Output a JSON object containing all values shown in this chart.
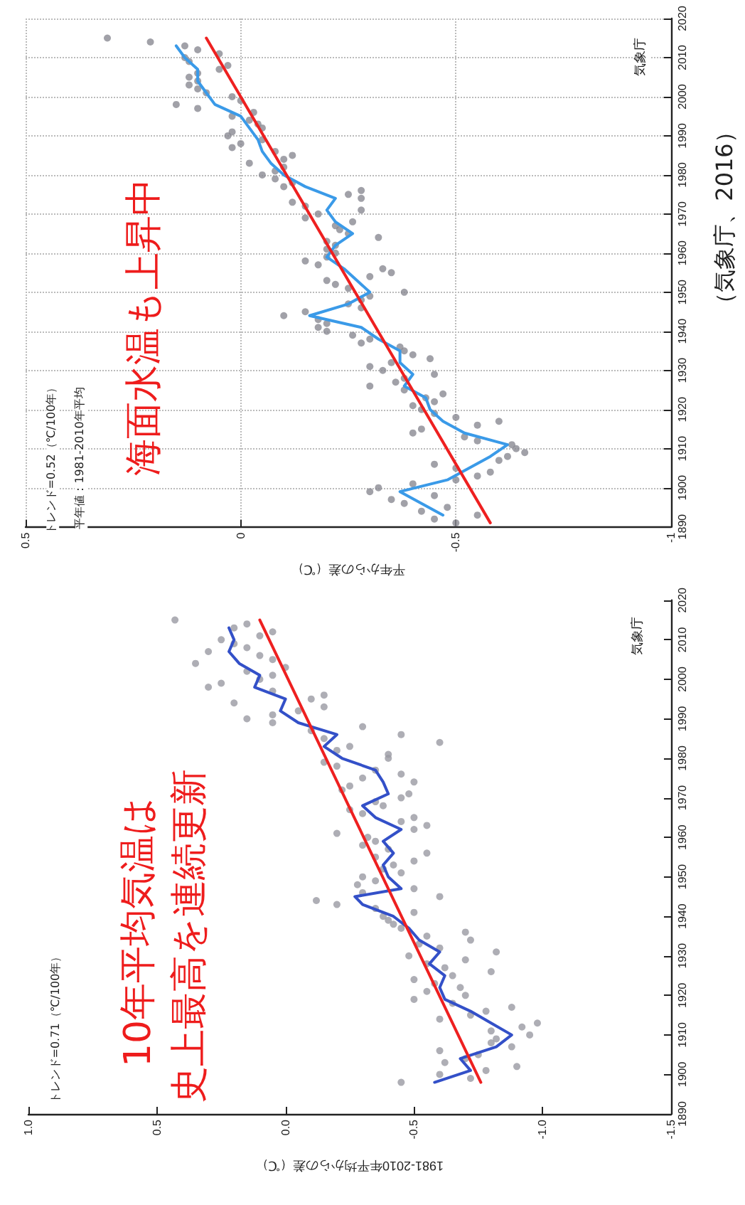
{
  "chart_data": [
    {
      "type": "scatter",
      "orientation": "horizontal",
      "xlabel": "1981-2010年平均からの差（℃）",
      "annotations": [
        "トレンド=0.71（℃/100年）",
        "10年平均気温は",
        "史上最高を連続更新",
        "気象庁"
      ],
      "ylim": [
        1890,
        2020
      ],
      "yticks": [
        1890,
        1900,
        1910,
        1920,
        1930,
        1940,
        1950,
        1960,
        1970,
        1980,
        1990,
        2000,
        2010,
        2020
      ],
      "xlim": [
        1,
        -1.5
      ],
      "xticks": [
        {
          "value": -1.5,
          "label": "-1.5"
        },
        {
          "value": -1,
          "label": "-1.0"
        },
        {
          "value": -0.5,
          "label": "-0.5"
        },
        {
          "value": 0,
          "label": "0.0"
        },
        {
          "value": 0.5,
          "label": "0.5"
        },
        {
          "value": 1,
          "label": "1.0"
        }
      ],
      "grid": false,
      "series": [
        {
          "marker": "circle",
          "color": "#9a9aa2",
          "x": [
            1898,
            1899,
            1900,
            1901,
            1902,
            1903,
            1904,
            1905,
            1906,
            1907,
            1908,
            1909,
            1910,
            1911,
            1912,
            1913,
            1914,
            1915,
            1916,
            1917,
            1918,
            1919,
            1920,
            1921,
            1922,
            1923,
            1924,
            1925,
            1926,
            1927,
            1928,
            1929,
            1930,
            1931,
            1932,
            1933,
            1934,
            1935,
            1936,
            1937,
            1938,
            1939,
            1940,
            1941,
            1942,
            1943,
            1944,
            1945,
            1946,
            1947,
            1948,
            1949,
            1950,
            1951,
            1952,
            1953,
            1954,
            1955,
            1956,
            1957,
            1958,
            1959,
            1960,
            1961,
            1962,
            1963,
            1964,
            1965,
            1966,
            1967,
            1968,
            1969,
            1970,
            1971,
            1972,
            1973,
            1974,
            1975,
            1976,
            1977,
            1978,
            1979,
            1980,
            1981,
            1982,
            1983,
            1984,
            1985,
            1986,
            1987,
            1988,
            1989,
            1990,
            1991,
            1992,
            1993,
            1994,
            1995,
            1996,
            1997,
            1998,
            1999,
            2000,
            2001,
            2002,
            2003,
            2004,
            2005,
            2006,
            2007,
            2008,
            2009,
            2010,
            2011,
            2012,
            2013,
            2014,
            2015
          ],
          "values": [
            -0.45,
            -0.72,
            -0.6,
            -0.78,
            -0.9,
            -0.62,
            -0.7,
            -0.75,
            -0.6,
            -0.88,
            -0.8,
            -0.82,
            -0.95,
            -0.8,
            -0.92,
            -0.98,
            -0.6,
            -0.72,
            -0.78,
            -0.88,
            -0.65,
            -0.5,
            -0.7,
            -0.55,
            -0.68,
            -0.58,
            -0.5,
            -0.65,
            -0.8,
            -0.62,
            -0.55,
            -0.7,
            -0.48,
            -0.82,
            -0.6,
            -0.52,
            -0.72,
            -0.55,
            -0.7,
            -0.45,
            -0.42,
            -0.4,
            -0.38,
            -0.5,
            -0.35,
            -0.2,
            -0.12,
            -0.6,
            -0.3,
            -0.5,
            -0.28,
            -0.35,
            -0.3,
            -0.45,
            -0.38,
            -0.42,
            -0.5,
            -0.35,
            -0.55,
            -0.4,
            -0.3,
            -0.35,
            -0.32,
            -0.2,
            -0.5,
            -0.55,
            -0.45,
            -0.5,
            -0.3,
            -0.25,
            -0.38,
            -0.35,
            -0.45,
            -0.48,
            -0.22,
            -0.25,
            -0.5,
            -0.3,
            -0.45,
            -0.35,
            -0.2,
            -0.15,
            -0.4,
            -0.4,
            -0.2,
            -0.25,
            -0.6,
            -0.15,
            -0.45,
            -0.1,
            -0.3,
            0.05,
            0.15,
            0.05,
            -0.05,
            -0.15,
            0.2,
            -0.1,
            -0.15,
            0.05,
            0.3,
            0.25,
            0.1,
            0.05,
            0.15,
            0.0,
            0.35,
            0.05,
            0.1,
            0.3,
            0.15,
            0.2,
            0.25,
            0.1,
            0.05,
            0.2,
            0.15,
            0.43
          ]
        },
        {
          "type": "line",
          "marker": "none",
          "color": "#3350c8",
          "x": [
            1898,
            1901,
            1904,
            1907,
            1910,
            1913,
            1916,
            1919,
            1922,
            1925,
            1928,
            1931,
            1934,
            1937,
            1940,
            1943,
            1945,
            1947,
            1950,
            1953,
            1956,
            1959,
            1962,
            1965,
            1968,
            1971,
            1974,
            1977,
            1980,
            1983,
            1986,
            1989,
            1992,
            1995,
            1998,
            2001,
            2004,
            2007,
            2010,
            2013
          ],
          "values": [
            -0.58,
            -0.72,
            -0.68,
            -0.82,
            -0.88,
            -0.8,
            -0.72,
            -0.62,
            -0.6,
            -0.62,
            -0.56,
            -0.6,
            -0.52,
            -0.48,
            -0.42,
            -0.3,
            -0.27,
            -0.45,
            -0.4,
            -0.38,
            -0.42,
            -0.38,
            -0.45,
            -0.35,
            -0.3,
            -0.4,
            -0.38,
            -0.35,
            -0.22,
            -0.15,
            -0.2,
            -0.05,
            0.02,
            0.0,
            0.12,
            0.1,
            0.18,
            0.22,
            0.2,
            0.22
          ]
        },
        {
          "type": "line",
          "marker": "none",
          "color": "#ee2020",
          "x": [
            1898,
            2015
          ],
          "values": [
            -0.76,
            0.1
          ]
        }
      ]
    },
    {
      "type": "scatter",
      "orientation": "horizontal",
      "xlabel": "平年からの差（℃）",
      "annotations": [
        "トレンド=0.52（℃/100年）",
        "平年値：1981-2010年平均",
        "海面水温も上昇中",
        "気象庁",
        "（気象庁、2016）"
      ],
      "ylim": [
        1890,
        2020
      ],
      "yticks": [
        1890,
        1900,
        1910,
        1920,
        1930,
        1940,
        1950,
        1960,
        1970,
        1980,
        1990,
        2000,
        2010,
        2020
      ],
      "xlim": [
        0.5,
        -1
      ],
      "xticks": [
        -1,
        -0.5,
        0,
        0.5
      ],
      "grid": true,
      "series": [
        {
          "marker": "circle",
          "color": "#8a8a92",
          "x": [
            1891,
            1892,
            1893,
            1894,
            1895,
            1896,
            1897,
            1898,
            1899,
            1900,
            1901,
            1902,
            1903,
            1904,
            1905,
            1906,
            1907,
            1908,
            1909,
            1910,
            1911,
            1912,
            1913,
            1914,
            1915,
            1916,
            1917,
            1918,
            1919,
            1920,
            1921,
            1922,
            1923,
            1924,
            1925,
            1926,
            1927,
            1928,
            1929,
            1930,
            1931,
            1932,
            1933,
            1934,
            1935,
            1936,
            1937,
            1938,
            1939,
            1940,
            1941,
            1942,
            1943,
            1944,
            1945,
            1946,
            1947,
            1948,
            1949,
            1950,
            1951,
            1952,
            1953,
            1954,
            1955,
            1956,
            1957,
            1958,
            1959,
            1960,
            1961,
            1962,
            1963,
            1964,
            1965,
            1966,
            1967,
            1968,
            1969,
            1970,
            1971,
            1972,
            1973,
            1974,
            1975,
            1976,
            1977,
            1978,
            1979,
            1980,
            1981,
            1982,
            1983,
            1984,
            1985,
            1986,
            1987,
            1988,
            1989,
            1990,
            1991,
            1992,
            1993,
            1994,
            1995,
            1996,
            1997,
            1998,
            1999,
            2000,
            2001,
            2002,
            2003,
            2004,
            2005,
            2006,
            2007,
            2008,
            2009,
            2010,
            2011,
            2012,
            2013,
            2014,
            2015
          ],
          "values": [
            -0.5,
            -0.45,
            -0.55,
            -0.42,
            -0.48,
            -0.38,
            -0.35,
            -0.45,
            -0.3,
            -0.32,
            -0.4,
            -0.5,
            -0.55,
            -0.58,
            -0.5,
            -0.45,
            -0.6,
            -0.62,
            -0.66,
            -0.64,
            -0.63,
            -0.55,
            -0.52,
            -0.4,
            -0.42,
            -0.55,
            -0.6,
            -0.5,
            -0.45,
            -0.42,
            -0.4,
            -0.45,
            -0.43,
            -0.47,
            -0.38,
            -0.3,
            -0.36,
            -0.38,
            -0.45,
            -0.33,
            -0.3,
            -0.35,
            -0.44,
            -0.4,
            -0.38,
            -0.37,
            -0.28,
            -0.3,
            -0.26,
            -0.2,
            -0.18,
            -0.2,
            -0.18,
            -0.1,
            -0.15,
            -0.28,
            -0.25,
            -0.28,
            -0.3,
            -0.38,
            -0.25,
            -0.22,
            -0.2,
            -0.3,
            -0.35,
            -0.33,
            -0.18,
            -0.15,
            -0.2,
            -0.22,
            -0.2,
            -0.22,
            -0.2,
            -0.32,
            -0.25,
            -0.23,
            -0.22,
            -0.26,
            -0.15,
            -0.18,
            -0.28,
            -0.15,
            -0.12,
            -0.28,
            -0.25,
            -0.28,
            -0.1,
            -0.12,
            -0.08,
            -0.05,
            -0.08,
            -0.1,
            -0.02,
            -0.1,
            -0.12,
            -0.08,
            0.02,
            0.0,
            -0.05,
            0.03,
            0.02,
            -0.05,
            -0.04,
            -0.02,
            0.02,
            -0.03,
            0.1,
            0.15,
            0.0,
            0.02,
            0.08,
            0.1,
            0.12,
            0.1,
            0.12,
            0.1,
            0.05,
            0.03,
            0.12,
            0.13,
            0.05,
            0.1,
            0.13,
            0.21,
            0.31
          ]
        },
        {
          "type": "line",
          "marker": "none",
          "color": "#3a9ae8",
          "x": [
            1893,
            1896,
            1899,
            1902,
            1905,
            1908,
            1911,
            1914,
            1917,
            1920,
            1923,
            1926,
            1929,
            1932,
            1935,
            1938,
            1941,
            1944,
            1947,
            1950,
            1953,
            1956,
            1959,
            1962,
            1965,
            1968,
            1971,
            1974,
            1977,
            1980,
            1983,
            1986,
            1989,
            1992,
            1995,
            1998,
            2001,
            2004,
            2007,
            2010,
            2013
          ],
          "values": [
            -0.47,
            -0.42,
            -0.37,
            -0.48,
            -0.53,
            -0.58,
            -0.62,
            -0.52,
            -0.47,
            -0.44,
            -0.43,
            -0.38,
            -0.4,
            -0.37,
            -0.37,
            -0.32,
            -0.28,
            -0.16,
            -0.25,
            -0.3,
            -0.27,
            -0.24,
            -0.2,
            -0.22,
            -0.26,
            -0.22,
            -0.2,
            -0.22,
            -0.15,
            -0.1,
            -0.07,
            -0.05,
            -0.04,
            -0.02,
            0.0,
            0.06,
            0.08,
            0.1,
            0.1,
            0.13,
            0.15
          ]
        },
        {
          "type": "line",
          "marker": "none",
          "color": "#ee2020",
          "x": [
            1891,
            2015
          ],
          "values": [
            -0.58,
            0.08
          ]
        }
      ]
    }
  ]
}
